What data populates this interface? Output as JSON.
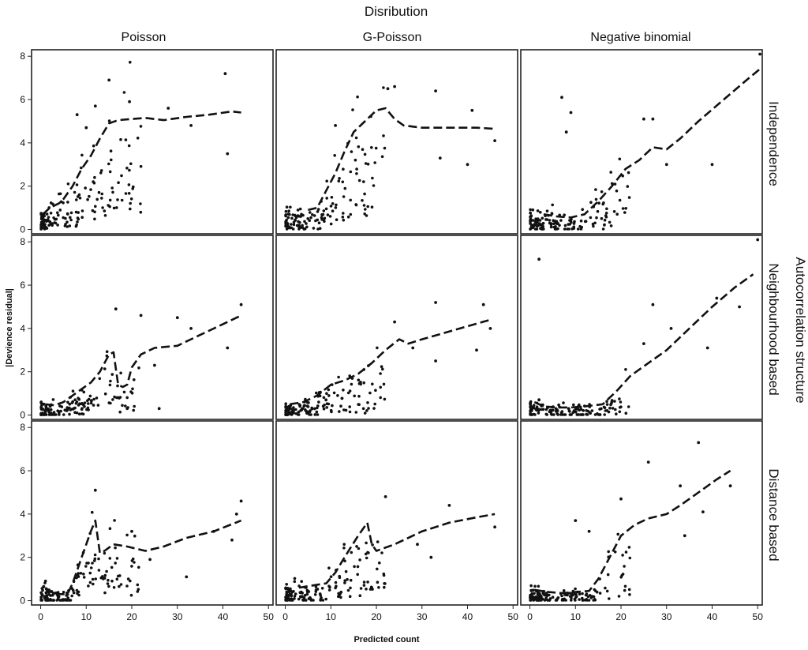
{
  "chart_data": {
    "type": "scatter",
    "title": "Disribution",
    "xlabel": "Predicted count",
    "ylabel": "|Devience residual|",
    "right_title": "Autocorrelation structure",
    "columns": [
      "Poisson",
      "G-Poisson",
      "Negative binomial"
    ],
    "rows": [
      "Independence",
      "Neighbourhood based",
      "Distance based"
    ],
    "xlim": [
      -2,
      51
    ],
    "ylim": [
      -0.2,
      8.3
    ],
    "xticks": [
      0,
      10,
      20,
      30,
      40,
      50
    ],
    "yticks": [
      0,
      2,
      4,
      6,
      8
    ],
    "panels": [
      {
        "row": "Independence",
        "col": "Poisson",
        "smoother": [
          [
            0.5,
            0.7
          ],
          [
            2,
            1.0
          ],
          [
            4,
            1.2
          ],
          [
            5,
            1.4
          ],
          [
            7,
            2.0
          ],
          [
            9,
            2.8
          ],
          [
            11,
            3.4
          ],
          [
            13,
            4.2
          ],
          [
            15,
            4.9
          ],
          [
            17,
            5.05
          ],
          [
            20,
            5.1
          ],
          [
            23,
            5.15
          ],
          [
            27,
            5.05
          ],
          [
            32,
            5.2
          ],
          [
            37,
            5.3
          ],
          [
            42,
            5.45
          ],
          [
            44,
            5.4
          ]
        ],
        "extra_points": [
          [
            15,
            6.9
          ],
          [
            40.5,
            7.2
          ],
          [
            19.5,
            5.9
          ],
          [
            41,
            3.5
          ],
          [
            28,
            5.6
          ],
          [
            33,
            4.8
          ],
          [
            12,
            5.7
          ],
          [
            8,
            5.3
          ],
          [
            10,
            4.7
          ]
        ]
      },
      {
        "row": "Independence",
        "col": "G-Poisson",
        "smoother": [
          [
            5,
            0.9
          ],
          [
            7,
            1.0
          ],
          [
            9,
            1.8
          ],
          [
            11,
            2.6
          ],
          [
            13,
            3.6
          ],
          [
            15,
            4.5
          ],
          [
            18,
            5.1
          ],
          [
            20,
            5.5
          ],
          [
            22,
            5.6
          ],
          [
            24,
            5.1
          ],
          [
            26,
            4.8
          ],
          [
            30,
            4.7
          ],
          [
            36,
            4.7
          ],
          [
            42,
            4.7
          ],
          [
            46,
            4.65
          ]
        ],
        "extra_points": [
          [
            22.5,
            6.5
          ],
          [
            24,
            6.6
          ],
          [
            33,
            6.4
          ],
          [
            41,
            5.5
          ],
          [
            34,
            3.3
          ],
          [
            40,
            3.0
          ],
          [
            46,
            4.1
          ],
          [
            11,
            4.8
          ]
        ]
      },
      {
        "row": "Independence",
        "col": "Negative binomial",
        "smoother": [
          [
            3,
            0.7
          ],
          [
            6,
            0.6
          ],
          [
            9,
            0.55
          ],
          [
            12,
            0.7
          ],
          [
            15,
            1.3
          ],
          [
            18,
            2.0
          ],
          [
            21,
            2.8
          ],
          [
            24,
            3.2
          ],
          [
            27,
            3.8
          ],
          [
            30,
            3.7
          ],
          [
            33,
            4.2
          ],
          [
            37,
            5.0
          ],
          [
            42,
            5.9
          ],
          [
            47,
            6.8
          ],
          [
            51,
            7.5
          ]
        ],
        "extra_points": [
          [
            7,
            6.1
          ],
          [
            50.5,
            8.1
          ],
          [
            8,
            4.5
          ],
          [
            27,
            5.1
          ],
          [
            25,
            5.1
          ],
          [
            40,
            3.0
          ],
          [
            30,
            3.0
          ],
          [
            9,
            5.4
          ]
        ]
      },
      {
        "row": "Neighbourhood based",
        "col": "Poisson",
        "smoother": [
          [
            1,
            0.5
          ],
          [
            3,
            0.45
          ],
          [
            5,
            0.6
          ],
          [
            7,
            0.9
          ],
          [
            9,
            1.2
          ],
          [
            11,
            1.5
          ],
          [
            13,
            2.0
          ],
          [
            15,
            2.8
          ],
          [
            16,
            2.9
          ],
          [
            17,
            1.4
          ],
          [
            18,
            1.3
          ],
          [
            19,
            1.4
          ],
          [
            20,
            2.2
          ],
          [
            22,
            2.8
          ],
          [
            25,
            3.1
          ],
          [
            30,
            3.2
          ],
          [
            35,
            3.7
          ],
          [
            40,
            4.2
          ],
          [
            44,
            4.6
          ]
        ],
        "extra_points": [
          [
            16.5,
            4.9
          ],
          [
            22,
            4.6
          ],
          [
            44,
            5.1
          ],
          [
            30,
            4.5
          ],
          [
            33,
            4.0
          ],
          [
            41,
            3.1
          ],
          [
            25,
            2.3
          ],
          [
            26,
            0.3
          ],
          [
            19,
            0.3
          ]
        ]
      },
      {
        "row": "Neighbourhood based",
        "col": "G-Poisson",
        "smoother": [
          [
            1,
            0.5
          ],
          [
            4,
            0.6
          ],
          [
            7,
            0.9
          ],
          [
            10,
            1.4
          ],
          [
            13,
            1.6
          ],
          [
            16,
            1.9
          ],
          [
            19,
            2.4
          ],
          [
            22,
            3.0
          ],
          [
            25,
            3.5
          ],
          [
            27,
            3.3
          ],
          [
            30,
            3.5
          ],
          [
            35,
            3.8
          ],
          [
            40,
            4.1
          ],
          [
            45,
            4.4
          ]
        ],
        "extra_points": [
          [
            33,
            5.2
          ],
          [
            43.5,
            5.1
          ],
          [
            45,
            4.0
          ],
          [
            42,
            3.0
          ],
          [
            24,
            4.3
          ],
          [
            33,
            2.5
          ],
          [
            28,
            3.1
          ]
        ]
      },
      {
        "row": "Neighbourhood based",
        "col": "Negative binomial",
        "smoother": [
          [
            1,
            0.6
          ],
          [
            3,
            0.4
          ],
          [
            6,
            0.35
          ],
          [
            9,
            0.35
          ],
          [
            12,
            0.4
          ],
          [
            14,
            0.45
          ],
          [
            16,
            0.5
          ],
          [
            19,
            1.1
          ],
          [
            22,
            1.8
          ],
          [
            26,
            2.4
          ],
          [
            30,
            3.0
          ],
          [
            35,
            4.0
          ],
          [
            40,
            5.0
          ],
          [
            45,
            5.9
          ],
          [
            49,
            6.5
          ]
        ],
        "extra_points": [
          [
            50,
            8.1
          ],
          [
            2,
            7.2
          ],
          [
            41,
            5.4
          ],
          [
            27,
            5.1
          ],
          [
            46,
            5.0
          ],
          [
            31,
            4.0
          ],
          [
            39,
            3.1
          ],
          [
            25,
            3.3
          ]
        ]
      },
      {
        "row": "Distance based",
        "col": "Poisson",
        "smoother": [
          [
            1,
            0.6
          ],
          [
            3,
            0.3
          ],
          [
            5,
            0.3
          ],
          [
            6,
            0.35
          ],
          [
            7,
            0.8
          ],
          [
            9,
            2.0
          ],
          [
            11,
            3.2
          ],
          [
            12,
            3.7
          ],
          [
            13,
            2.2
          ],
          [
            14,
            2.3
          ],
          [
            16,
            2.6
          ],
          [
            19,
            2.5
          ],
          [
            23,
            2.3
          ],
          [
            27,
            2.5
          ],
          [
            32,
            2.9
          ],
          [
            38,
            3.2
          ],
          [
            44,
            3.7
          ]
        ],
        "extra_points": [
          [
            12,
            5.1
          ],
          [
            44,
            4.6
          ],
          [
            43,
            4.0
          ],
          [
            38,
            3.2
          ],
          [
            20,
            3.2
          ],
          [
            24,
            1.9
          ],
          [
            32,
            1.1
          ],
          [
            42,
            2.8
          ]
        ]
      },
      {
        "row": "Distance based",
        "col": "G-Poisson",
        "smoother": [
          [
            3,
            0.6
          ],
          [
            6,
            0.7
          ],
          [
            9,
            0.8
          ],
          [
            11,
            1.3
          ],
          [
            13,
            2.0
          ],
          [
            16,
            3.0
          ],
          [
            18,
            3.6
          ],
          [
            19,
            2.6
          ],
          [
            20,
            2.3
          ],
          [
            24,
            2.6
          ],
          [
            30,
            3.2
          ],
          [
            36,
            3.6
          ],
          [
            42,
            3.85
          ],
          [
            46,
            4.0
          ]
        ],
        "extra_points": [
          [
            22,
            4.8
          ],
          [
            36,
            4.4
          ],
          [
            46,
            3.4
          ],
          [
            32,
            2.0
          ],
          [
            29,
            2.6
          ],
          [
            12,
            0.3
          ]
        ]
      },
      {
        "row": "Distance based",
        "col": "Negative binomial",
        "smoother": [
          [
            1,
            0.5
          ],
          [
            4,
            0.4
          ],
          [
            7,
            0.35
          ],
          [
            10,
            0.4
          ],
          [
            13,
            0.45
          ],
          [
            15,
            1.0
          ],
          [
            18,
            2.2
          ],
          [
            20,
            3.0
          ],
          [
            23,
            3.5
          ],
          [
            26,
            3.8
          ],
          [
            30,
            4.0
          ],
          [
            33,
            4.4
          ],
          [
            37,
            5.0
          ],
          [
            41,
            5.6
          ],
          [
            44,
            6.0
          ]
        ],
        "extra_points": [
          [
            37,
            7.3
          ],
          [
            26,
            6.4
          ],
          [
            33,
            5.3
          ],
          [
            20,
            4.7
          ],
          [
            44,
            5.3
          ],
          [
            38,
            4.1
          ],
          [
            34,
            3.0
          ],
          [
            13,
            3.2
          ],
          [
            10,
            3.7
          ]
        ]
      }
    ]
  }
}
